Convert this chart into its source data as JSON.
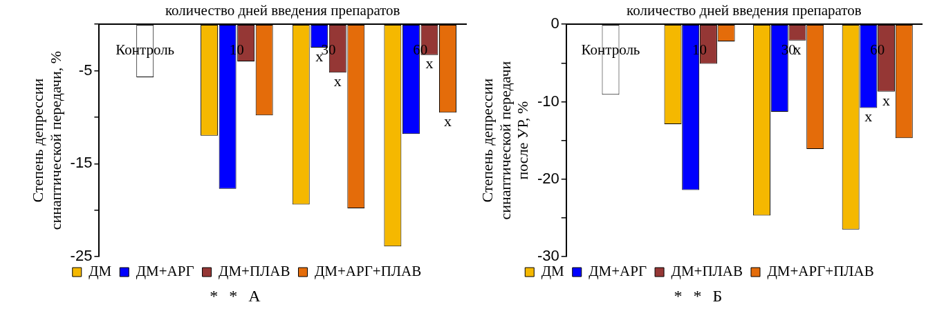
{
  "chart_data": [
    {
      "type": "bar",
      "xlabel": "количество дней введения препаратов",
      "ylabel": "Степень депрессии синаптической передачи, %",
      "categories": [
        "Контроль",
        "10",
        "30",
        "60"
      ],
      "ylim": [
        -25,
        0
      ],
      "yticks": [
        {
          "value": 0,
          "label": null
        },
        -5,
        {
          "value": -10,
          "label": null
        },
        -15,
        {
          "value": -20,
          "label": null
        },
        -25
      ],
      "grid": false,
      "legend": "bottom",
      "series": [
        {
          "color": "#ffffff",
          "values": [
            -5.7,
            null,
            null,
            null
          ]
        },
        {
          "name": "ДМ",
          "color": "#f5b800",
          "values": [
            null,
            -12.0,
            -19.4,
            -23.9
          ]
        },
        {
          "name": "ДМ+АРГ",
          "color": "#0000ff",
          "values": [
            null,
            -17.7,
            -2.5,
            -11.8
          ]
        },
        {
          "name": "ДМ+ПЛАВ",
          "color": "#953735",
          "values": [
            null,
            -4.0,
            -5.2,
            -3.3
          ]
        },
        {
          "name": "ДМ+АРГ+ПЛАВ",
          "color": "#e46c0a",
          "values": [
            null,
            -9.8,
            -19.8,
            -9.5
          ]
        }
      ],
      "annotations": [
        "*",
        "*",
        {
          "text": "x",
          "x": "30",
          "y": -2.5
        },
        {
          "text": "x",
          "x": "30",
          "y": -5.2
        },
        {
          "text": "x",
          "x": "60",
          "y": -3.3
        },
        {
          "text": "x",
          "x": "60",
          "y": -9.5
        },
        "А"
      ]
    },
    {
      "type": "bar",
      "xlabel": "количество дней введения препаратов",
      "ylabel": "Степень депрессии синаптической передачи после УР, %",
      "categories": [
        "Контроль",
        "10",
        "30",
        "60"
      ],
      "ylim": [
        -30,
        0
      ],
      "yticks": [
        0,
        {
          "value": -5,
          "label": null
        },
        -10,
        {
          "value": -15,
          "label": null
        },
        -20,
        {
          "value": -25,
          "label": null
        },
        -30
      ],
      "grid": false,
      "legend": "bottom",
      "series": [
        {
          "color": "#ffffff",
          "values": [
            -9.1,
            null,
            null,
            null
          ]
        },
        {
          "name": "ДМ",
          "color": "#f5b800",
          "values": [
            null,
            -12.9,
            -24.7,
            -26.5
          ]
        },
        {
          "name": "ДМ+АРГ",
          "color": "#0000ff",
          "values": [
            null,
            -21.4,
            -11.3,
            -10.8
          ]
        },
        {
          "name": "ДМ+ПЛАВ",
          "color": "#953735",
          "values": [
            null,
            -5.1,
            -2.1,
            -8.7
          ]
        },
        {
          "name": "ДМ+АРГ+ПЛАВ",
          "color": "#e46c0a",
          "values": [
            null,
            -2.2,
            -16.1,
            -14.7
          ]
        }
      ],
      "annotations": [
        "*",
        "*",
        {
          "text": "x",
          "x": "30",
          "y": -2.1
        },
        {
          "text": "x",
          "x": "60",
          "y": -8.7
        },
        {
          "text": "x",
          "x": "60",
          "y": -10.8
        },
        "Б"
      ]
    }
  ]
}
